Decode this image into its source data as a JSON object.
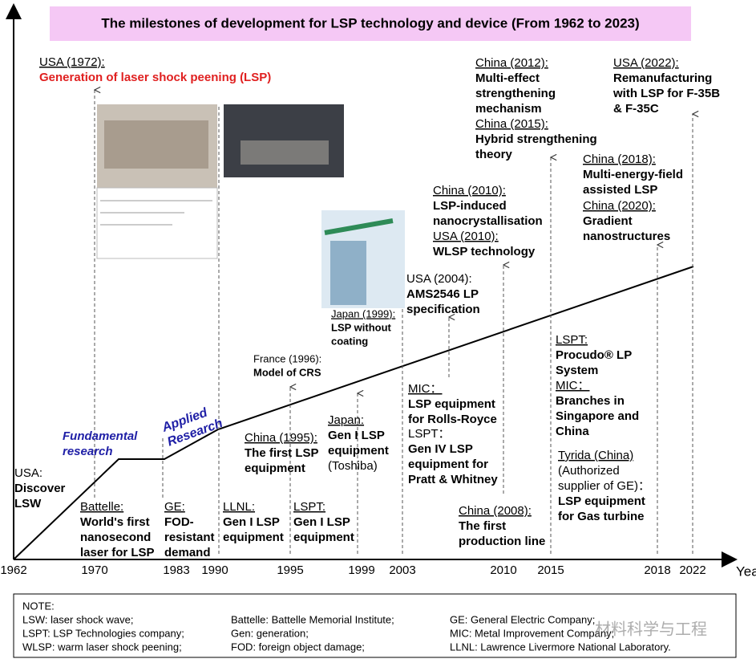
{
  "title": "The milestones of development for LSP technology and device (From 1962 to 2023)",
  "axis": {
    "years": [
      1962,
      1970,
      1983,
      1990,
      1995,
      1999,
      2003,
      2010,
      2015,
      2018,
      2022
    ],
    "unit": "Year"
  },
  "phases": [
    {
      "lines": [
        "Fundamental",
        "research"
      ]
    },
    {
      "lines": [
        "Applied",
        "Research"
      ]
    }
  ],
  "events": [
    {
      "place": "USA (1972):",
      "lines": [
        "Generation of laser shock peening (LSP)"
      ]
    },
    {
      "place": "USA:",
      "lines": [
        "Discover",
        "LSW"
      ]
    },
    {
      "place": "Battelle:",
      "lines": [
        "World's first",
        "nanosecond",
        "laser for LSP"
      ]
    },
    {
      "place": "GE:",
      "lines": [
        "FOD-",
        "resistant",
        "demand"
      ]
    },
    {
      "place": "LLNL:",
      "lines": [
        "Gen I LSP",
        "equipment"
      ]
    },
    {
      "place": "LSPT:",
      "lines": [
        "Gen I LSP",
        "equipment"
      ]
    },
    {
      "place": "China (1995):",
      "lines": [
        "The first LSP",
        "equipment"
      ]
    },
    {
      "place": "France (1996):",
      "lines": [
        "Model of CRS"
      ]
    },
    {
      "place": "Japan:",
      "lines": [
        "Gen I LSP",
        "equipment"
      ],
      "detail": [
        "(Toshiba)"
      ]
    },
    {
      "place": "Japan (1999):",
      "lines": [
        "LSP without",
        "coating"
      ]
    },
    {
      "place": "USA (2004):",
      "lines": [
        "AMS2546 LP",
        "specification"
      ]
    },
    {
      "place": "MIC：",
      "lines": [
        "LSP equipment",
        "for Rolls-Royce"
      ]
    },
    {
      "place": "LSPT：",
      "lines": [
        "Gen IV LSP",
        "equipment for",
        "Pratt & Whitney"
      ]
    },
    {
      "place": "China (2010):",
      "lines": [
        "LSP-induced",
        "nanocrystallisation"
      ]
    },
    {
      "place": "USA (2010):",
      "lines": [
        "WLSP technology"
      ]
    },
    {
      "place": "China (2008):",
      "lines": [
        "The first",
        "production line"
      ]
    },
    {
      "place": "China (2012):",
      "lines": [
        "Multi-effect",
        "strengthening",
        "mechanism"
      ]
    },
    {
      "place": "China (2015):",
      "lines": [
        "Hybrid strengthening",
        "theory"
      ]
    },
    {
      "place": "LSPT:",
      "lines": [
        "Procudo® LP",
        "System"
      ]
    },
    {
      "place": "MIC：",
      "lines": [
        "Branches in",
        "Singapore and",
        "China"
      ]
    },
    {
      "place": "Tyrida (China)",
      "detail": [
        "(Authorized",
        "supplier of GE)："
      ],
      "lines": [
        "LSP equipment",
        "for Gas turbine"
      ]
    },
    {
      "place": "China (2018):",
      "lines": [
        "Multi-energy-field",
        "assisted LSP"
      ]
    },
    {
      "place": "China (2020):",
      "lines": [
        "Gradient",
        "nanostructures"
      ]
    },
    {
      "place": "USA (2022):",
      "lines": [
        "Remanufacturing",
        "with LSP for F-35B",
        "& F-35C"
      ]
    }
  ],
  "note": {
    "heading": "NOTE:",
    "rows": [
      [
        "LSW: laser shock wave;",
        "Battelle: Battelle Memorial Institute;",
        "GE: General Electric Company;"
      ],
      [
        "LSPT: LSP Technologies company;",
        "Gen: generation;",
        "MIC: Metal Improvement Company;"
      ],
      [
        "WLSP: warm laser shock peening;",
        "FOD: foreign object damage;",
        "LLNL: Lawrence Livermore National Laboratory."
      ]
    ]
  },
  "watermark": "材料科学与工程"
}
